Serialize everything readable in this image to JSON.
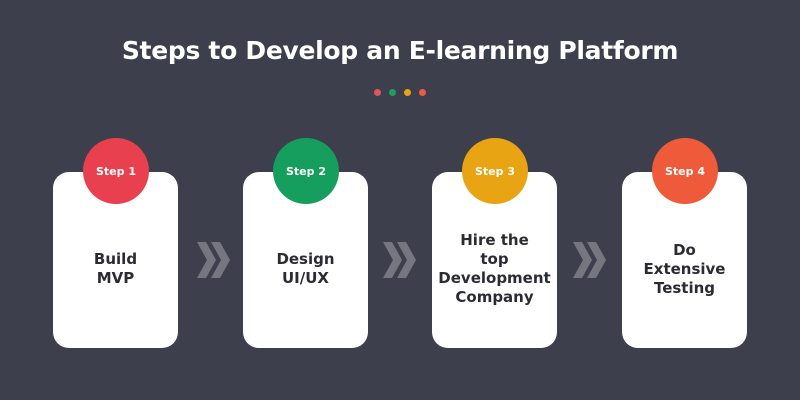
{
  "title": "Steps to Develop an E-learning Platform",
  "dots": [
    "#e0545a",
    "#1f9e5e",
    "#e8a317",
    "#ef5b3d"
  ],
  "steps": [
    {
      "badge": "Step 1",
      "text": "Build\nMVP",
      "color": "#e9404f"
    },
    {
      "badge": "Step 2",
      "text": "Design\nUI/UX",
      "color": "#169e5f"
    },
    {
      "badge": "Step 3",
      "text": "Hire the\ntop\nDevelopment\nCompany",
      "color": "#e9a414"
    },
    {
      "badge": "Step 4",
      "text": "Do\nExtensive\nTesting",
      "color": "#ef5b3a"
    }
  ],
  "arrow_color": "#75767f"
}
